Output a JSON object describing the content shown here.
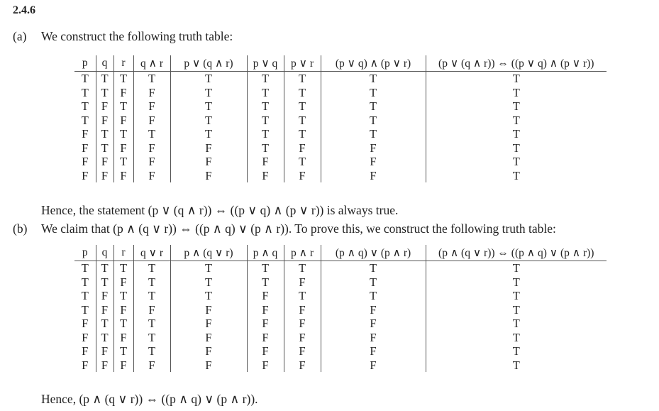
{
  "title": "2.4.6",
  "part_a": {
    "label": "(a)",
    "intro": "We construct the following truth table:",
    "headers": [
      "p",
      "q",
      "r",
      "q ∧ r",
      "p ∨ (q ∧ r)",
      "p ∨ q",
      "p ∨ r",
      "(p ∨ q) ∧ (p ∨ r)",
      "(p ∨ (q ∧ r)) ⇔ ((p ∨ q) ∧ (p ∨ r))"
    ],
    "rows": [
      [
        "T",
        "T",
        "T",
        "T",
        "T",
        "T",
        "T",
        "T",
        "T"
      ],
      [
        "T",
        "T",
        "F",
        "F",
        "T",
        "T",
        "T",
        "T",
        "T"
      ],
      [
        "T",
        "F",
        "T",
        "F",
        "T",
        "T",
        "T",
        "T",
        "T"
      ],
      [
        "T",
        "F",
        "F",
        "F",
        "T",
        "T",
        "T",
        "T",
        "T"
      ],
      [
        "F",
        "T",
        "T",
        "T",
        "T",
        "T",
        "T",
        "T",
        "T"
      ],
      [
        "F",
        "T",
        "F",
        "F",
        "F",
        "T",
        "F",
        "F",
        "T"
      ],
      [
        "F",
        "F",
        "T",
        "F",
        "F",
        "F",
        "T",
        "F",
        "T"
      ],
      [
        "F",
        "F",
        "F",
        "F",
        "F",
        "F",
        "F",
        "F",
        "T"
      ]
    ],
    "conclusion": "Hence, the statement (p ∨ (q ∧ r)) ⇔ ((p ∨ q) ∧ (p ∨ r)) is always true."
  },
  "part_b": {
    "label": "(b)",
    "intro": "We claim that (p ∧ (q ∨ r)) ⇔ ((p ∧ q) ∨ (p ∧ r)). To prove this, we construct the following truth table:",
    "headers": [
      "p",
      "q",
      "r",
      "q ∨ r",
      "p ∧ (q ∨ r)",
      "p ∧ q",
      "p ∧ r",
      "(p ∧ q) ∨ (p ∧ r)",
      "(p ∧ (q ∨ r)) ⇔ ((p ∧ q) ∨ (p ∧ r))"
    ],
    "rows": [
      [
        "T",
        "T",
        "T",
        "T",
        "T",
        "T",
        "T",
        "T",
        "T"
      ],
      [
        "T",
        "T",
        "F",
        "T",
        "T",
        "T",
        "F",
        "T",
        "T"
      ],
      [
        "T",
        "F",
        "T",
        "T",
        "T",
        "F",
        "T",
        "T",
        "T"
      ],
      [
        "T",
        "F",
        "F",
        "F",
        "F",
        "F",
        "F",
        "F",
        "T"
      ],
      [
        "F",
        "T",
        "T",
        "T",
        "F",
        "F",
        "F",
        "F",
        "T"
      ],
      [
        "F",
        "T",
        "F",
        "T",
        "F",
        "F",
        "F",
        "F",
        "T"
      ],
      [
        "F",
        "F",
        "T",
        "T",
        "F",
        "F",
        "F",
        "F",
        "T"
      ],
      [
        "F",
        "F",
        "F",
        "F",
        "F",
        "F",
        "F",
        "F",
        "T"
      ]
    ],
    "conclusion": "Hence, (p ∧ (q ∨ r)) ⇔ ((p ∧ q) ∨ (p ∧ r))."
  }
}
